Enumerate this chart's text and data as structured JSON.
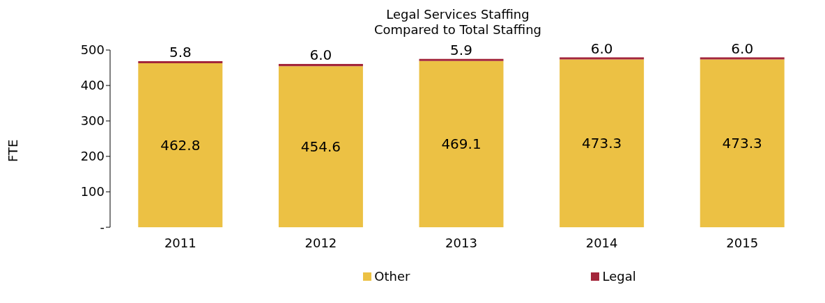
{
  "chart_data": {
    "type": "bar",
    "title": "Legal Services Staffing\nCompared to Total Staffing",
    "ylabel": "FTE",
    "categories": [
      "2011",
      "2012",
      "2013",
      "2014",
      "2015"
    ],
    "series": [
      {
        "name": "Other",
        "color": "#ecc144",
        "values": [
          462.8,
          454.6,
          469.1,
          473.3,
          473.3
        ],
        "value_labels": [
          "462.8",
          "454.6",
          "469.1",
          "473.3",
          "473.3"
        ]
      },
      {
        "name": "Legal",
        "color": "#a3263b",
        "values": [
          5.8,
          6.0,
          5.9,
          6.0,
          6.0
        ],
        "value_labels": [
          "5.8",
          "6.0",
          "5.9",
          "6.0",
          "6.0"
        ]
      }
    ],
    "stacked": true,
    "ylim": [
      0,
      500
    ],
    "yticks": [
      {
        "value": 0,
        "label": "-"
      },
      100,
      200,
      300,
      400,
      500
    ],
    "grid": false,
    "legend": "bottom"
  }
}
